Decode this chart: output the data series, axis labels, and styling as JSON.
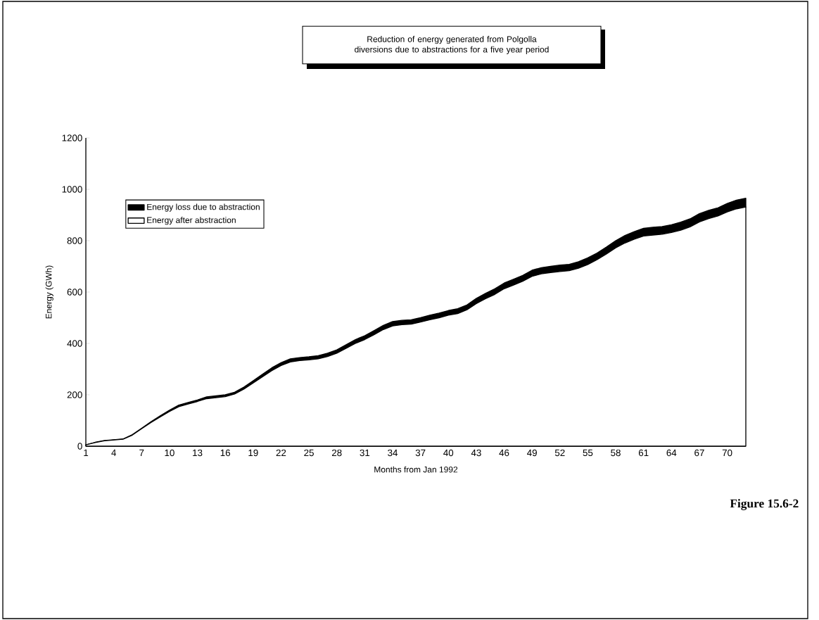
{
  "chart_data": {
    "type": "area",
    "stacked": true,
    "title": "Reduction of energy generated from Polgolla diversions due to abstractions for a five year period",
    "xlabel": "Months from Jan 1992",
    "ylabel": "Energy (GWh)",
    "categories": [
      "1",
      null,
      null,
      "4",
      null,
      null,
      "7",
      null,
      null,
      "10",
      null,
      null,
      "13",
      null,
      null,
      "16",
      null,
      null,
      "19",
      null,
      null,
      "22",
      null,
      null,
      "25",
      null,
      null,
      "28",
      null,
      null,
      "31",
      null,
      null,
      "34",
      null,
      null,
      "37",
      null,
      null,
      "40",
      null,
      null,
      "43",
      null,
      null,
      "46",
      null,
      null,
      "49",
      null,
      null,
      "52",
      null,
      null,
      "55",
      null,
      null,
      "58",
      null,
      null,
      "61",
      null,
      null,
      "64",
      null,
      null,
      "67",
      null,
      null,
      "70",
      null,
      null
    ],
    "series": [
      {
        "name": "Energy after abstraction",
        "color": "#ffffff",
        "values": [
          5,
          14,
          21,
          24,
          27,
          43,
          68,
          92,
          114,
          135,
          154,
          164,
          174,
          185,
          189,
          193,
          203,
          222,
          246,
          270,
          294,
          314,
          328,
          333,
          336,
          340,
          349,
          362,
          381,
          400,
          415,
          434,
          454,
          468,
          473,
          475,
          483,
          492,
          500,
          510,
          516,
          531,
          555,
          574,
          591,
          613,
          627,
          642,
          661,
          671,
          676,
          680,
          683,
          693,
          707,
          726,
          748,
          772,
          791,
          806,
          818,
          822,
          825,
          832,
          841,
          854,
          873,
          886,
          896,
          912,
          924,
          931
        ]
      },
      {
        "name": "Energy loss due to abstraction",
        "color": "#000000",
        "values": [
          0,
          1,
          1,
          1,
          1,
          2,
          2,
          3,
          4,
          5,
          6,
          6,
          6,
          7,
          7,
          7,
          7,
          8,
          9,
          10,
          11,
          11,
          12,
          12,
          12,
          12,
          13,
          13,
          14,
          15,
          15,
          16,
          16,
          17,
          17,
          17,
          17,
          18,
          18,
          18,
          19,
          19,
          20,
          21,
          22,
          22,
          23,
          23,
          24,
          24,
          24,
          25,
          25,
          25,
          26,
          26,
          27,
          28,
          29,
          29,
          30,
          30,
          30,
          30,
          31,
          31,
          32,
          32,
          32,
          33,
          34,
          34
        ]
      }
    ],
    "ylim": [
      0,
      1200
    ],
    "yticks": [
      0,
      200,
      400,
      600,
      800,
      1000,
      1200
    ],
    "legend": "top left",
    "annotations": [
      "Figure 15.6-2"
    ]
  }
}
